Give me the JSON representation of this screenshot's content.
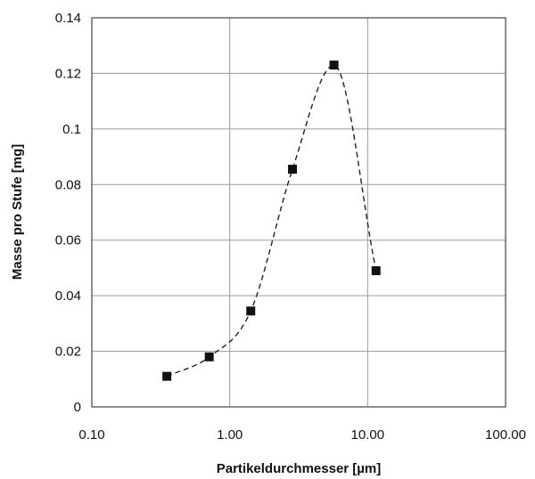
{
  "chart_data": {
    "type": "scatter",
    "xlabel": "Partikeldurchmesser [µm]",
    "ylabel": "Masse pro Stufe [mg]",
    "xscale": "log",
    "xlim": [
      0.1,
      100
    ],
    "ylim": [
      0,
      0.14
    ],
    "xticks": [
      "0.10",
      "1.00",
      "10.00",
      "100.00"
    ],
    "yticks": [
      "0",
      "0.02",
      "0.04",
      "0.06",
      "0.08",
      "0.1",
      "0.12",
      "0.14"
    ],
    "grid": true,
    "series": [
      {
        "marker": "square",
        "line": "dashed-smooth",
        "x": [
          0.35,
          0.71,
          1.42,
          2.85,
          5.7,
          11.5
        ],
        "y": [
          0.011,
          0.018,
          0.0345,
          0.0855,
          0.123,
          0.049
        ]
      }
    ],
    "colors": {
      "marker": "#111111",
      "grid": "#9a9a9a",
      "line": "#222222"
    }
  }
}
